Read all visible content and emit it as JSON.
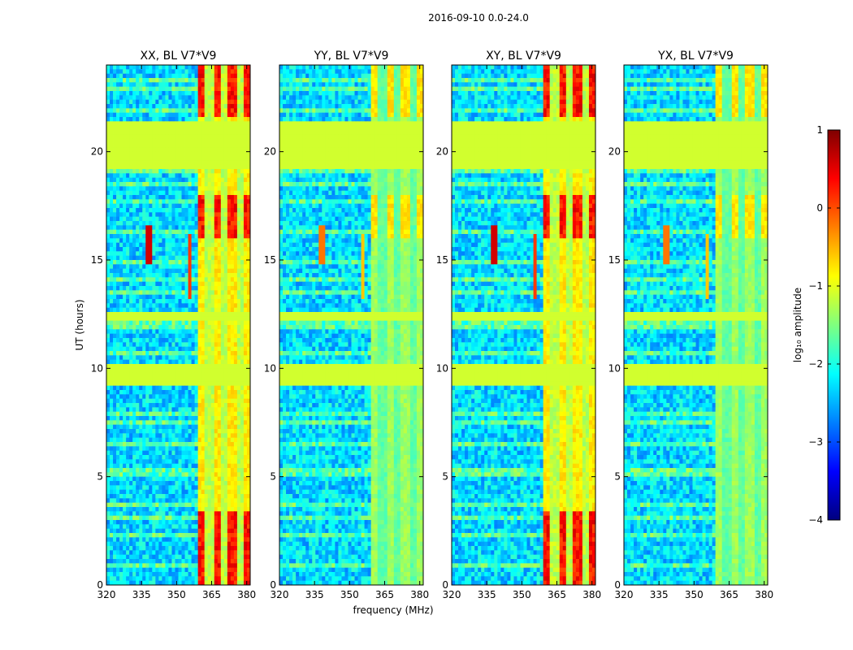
{
  "chart_data": {
    "type": "heatmap",
    "suptitle": "2016-09-10 0.0-24.0",
    "xlabel": "frequency (MHz)",
    "ylabel": "UT (hours)",
    "xlim": [
      320,
      381.5
    ],
    "ylim": [
      0,
      24
    ],
    "xticks": [
      320,
      335,
      350,
      365,
      380
    ],
    "yticks": [
      0,
      5,
      10,
      15,
      20
    ],
    "colormap": "jet",
    "colorbar": {
      "label": "log₁₀ amplitude",
      "range": [
        -4,
        1
      ],
      "ticks": [
        1,
        0,
        -1,
        -2,
        -3,
        -4
      ],
      "tick_labels": [
        "1",
        "0",
        "−1",
        "−2",
        "−3",
        "−4"
      ]
    },
    "panels": [
      {
        "title": "XX, BL V7*V9",
        "pol": "XX",
        "rfi": "strong"
      },
      {
        "title": "YY, BL V7*V9",
        "pol": "YY",
        "rfi": "weak"
      },
      {
        "title": "XY, BL V7*V9",
        "pol": "XY",
        "rfi": "strong"
      },
      {
        "title": "YX, BL V7*V9",
        "pol": "YX",
        "rfi": "weak"
      }
    ],
    "flagged_ut_ranges": [
      [
        19.2,
        21.4
      ],
      [
        9.3,
        10.2
      ],
      [
        12.2,
        12.5
      ]
    ],
    "background_level": -2.3,
    "flagged_level": -1.1
  }
}
